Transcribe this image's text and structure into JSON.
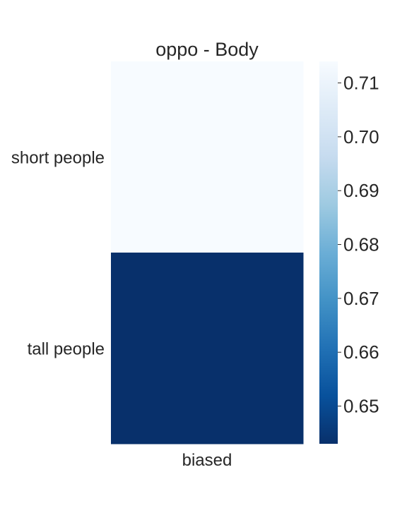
{
  "chart_data": {
    "type": "heatmap",
    "title": "oppo - Body",
    "xlabel": "",
    "ylabel": "",
    "columns": [
      "biased"
    ],
    "rows": [
      "short people",
      "tall people"
    ],
    "values": [
      [
        0.714
      ],
      [
        0.643
      ]
    ],
    "colorbar": {
      "min": 0.643,
      "max": 0.714,
      "ticks": [
        0.65,
        0.66,
        0.67,
        0.68,
        0.69,
        0.7,
        0.71
      ],
      "tick_labels": [
        "0.65",
        "0.66",
        "0.67",
        "0.68",
        "0.69",
        "0.70",
        "0.71"
      ],
      "colormap": "Blues_r",
      "colormap_stops": [
        "#08306b",
        "#08519c",
        "#2171b5",
        "#4292c6",
        "#6baed6",
        "#9ecae1",
        "#c6dbef",
        "#deebf7",
        "#f7fbff"
      ]
    },
    "grid": false,
    "legend": "colorbar-right"
  }
}
